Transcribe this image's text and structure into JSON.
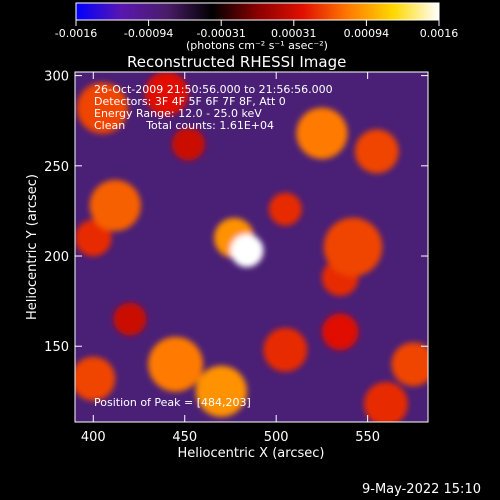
{
  "colorbar": {
    "ticks": [
      "-0.0016",
      "-0.00094",
      "-0.00031",
      "0.00031",
      "0.00094",
      "0.0016"
    ],
    "units_label": "(photons cm⁻² s⁻¹ asec⁻²)"
  },
  "plot": {
    "title": "Reconstructed RHESSI Image",
    "info_lines": [
      "26-Oct-2009 21:50:56.000 to 21:56:56.000",
      "Detectors: 3F 4F 5F 6F 7F 8F, Att 0",
      "Energy Range: 12.0 - 25.0 keV",
      "Clean      Total counts: 1.61E+04"
    ],
    "peak_label": "Position of Peak = [484,203]"
  },
  "timestamp": "9-May-2022 15:10",
  "chart_data": {
    "type": "heatmap",
    "title": "Reconstructed RHESSI Image",
    "xlabel": "Heliocentric X (arcsec)",
    "ylabel": "Heliocentric Y (arcsec)",
    "xlim": [
      390,
      583
    ],
    "ylim": [
      108,
      302
    ],
    "xticks": [
      400,
      450,
      500,
      550
    ],
    "yticks": [
      150,
      200,
      250,
      300
    ],
    "color_range": [
      -0.0016,
      0.0016
    ],
    "colorscale": [
      "#0000ff",
      "#5a16b0",
      "#4a1c6a",
      "#000000",
      "#8a0000",
      "#e01000",
      "#ff7a00",
      "#ffd800",
      "#ffffff"
    ],
    "peak": {
      "x": 484,
      "y": 203,
      "value": 0.0016
    },
    "emission_blobs": [
      {
        "x": 484,
        "y": 203,
        "r": 9,
        "value": 0.0016
      },
      {
        "x": 477,
        "y": 210,
        "r": 11,
        "value": 0.0009
      },
      {
        "x": 412,
        "y": 228,
        "r": 14,
        "value": 0.0007
      },
      {
        "x": 400,
        "y": 210,
        "r": 10,
        "value": 0.0005
      },
      {
        "x": 405,
        "y": 282,
        "r": 14,
        "value": 0.0006
      },
      {
        "x": 440,
        "y": 290,
        "r": 12,
        "value": 0.0004
      },
      {
        "x": 525,
        "y": 268,
        "r": 14,
        "value": 0.0008
      },
      {
        "x": 555,
        "y": 258,
        "r": 12,
        "value": 0.0006
      },
      {
        "x": 542,
        "y": 205,
        "r": 16,
        "value": 0.0006
      },
      {
        "x": 535,
        "y": 188,
        "r": 10,
        "value": 0.0005
      },
      {
        "x": 505,
        "y": 226,
        "r": 9,
        "value": 0.0005
      },
      {
        "x": 452,
        "y": 262,
        "r": 9,
        "value": 0.0003
      },
      {
        "x": 445,
        "y": 140,
        "r": 15,
        "value": 0.0008
      },
      {
        "x": 470,
        "y": 125,
        "r": 14,
        "value": 0.0009
      },
      {
        "x": 505,
        "y": 148,
        "r": 12,
        "value": 0.0005
      },
      {
        "x": 535,
        "y": 158,
        "r": 10,
        "value": 0.0004
      },
      {
        "x": 575,
        "y": 140,
        "r": 12,
        "value": 0.0006
      },
      {
        "x": 560,
        "y": 118,
        "r": 12,
        "value": 0.0005
      },
      {
        "x": 400,
        "y": 132,
        "r": 12,
        "value": 0.0006
      },
      {
        "x": 420,
        "y": 165,
        "r": 9,
        "value": 0.0003
      }
    ]
  }
}
